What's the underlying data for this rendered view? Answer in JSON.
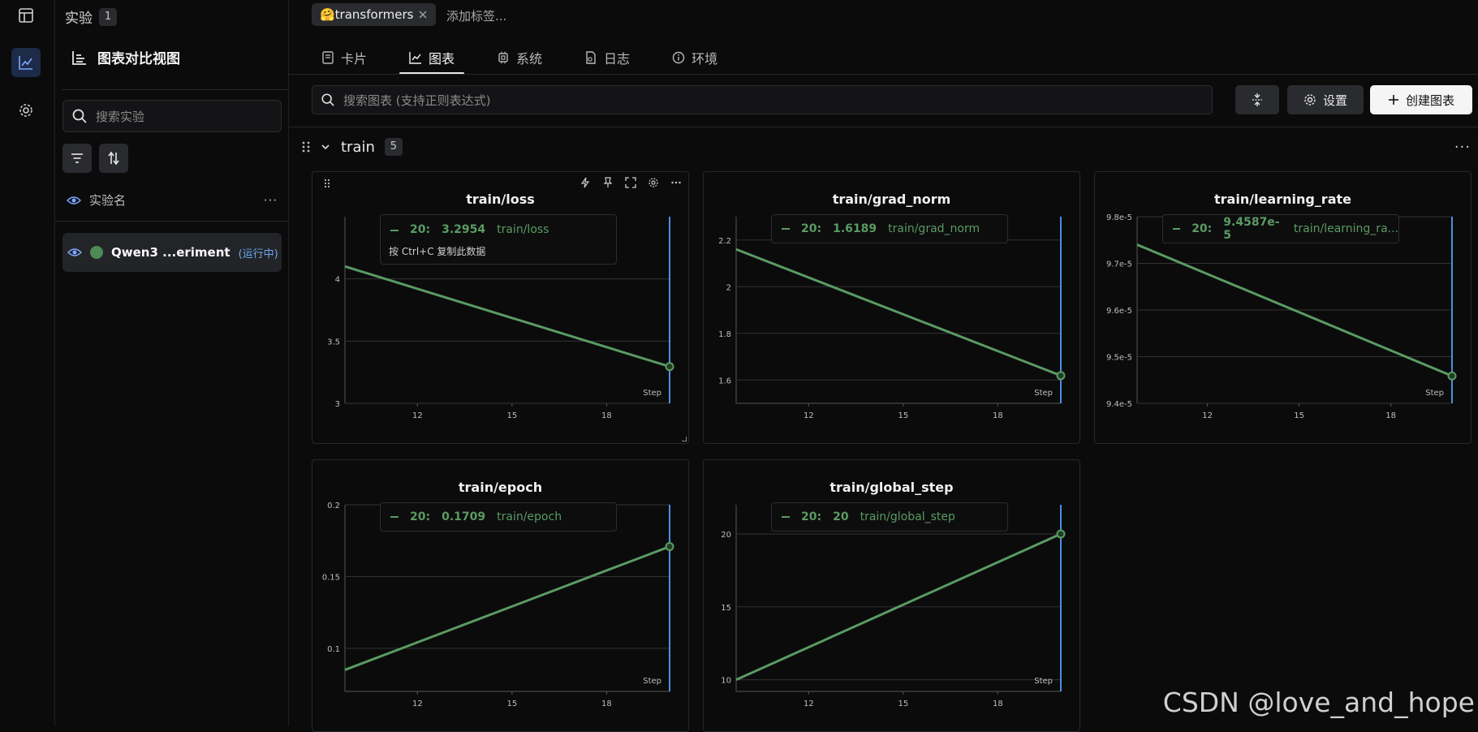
{
  "sidebar": {
    "experiments_label": "实验",
    "experiments_count": "1",
    "view_title": "图表对比视图",
    "search_placeholder": "搜索实验",
    "column_header": "实验名",
    "column_more": "···",
    "experiment": {
      "name": "Qwen3 ...eriment",
      "status": "(运行中)",
      "color": "#4e8a55"
    }
  },
  "header": {
    "tag": "🤗transformers",
    "add_tag": "添加标签...",
    "tabs": [
      {
        "label": "卡片",
        "icon": "card-icon"
      },
      {
        "label": "图表",
        "icon": "chart-icon"
      },
      {
        "label": "系统",
        "icon": "chip-icon"
      },
      {
        "label": "日志",
        "icon": "log-icon"
      },
      {
        "label": "环境",
        "icon": "info-icon"
      }
    ],
    "active_tab": "图表",
    "search_placeholder": "搜索图表 (支持正则表达式)",
    "settings_label": "设置",
    "create_label": "创建图表"
  },
  "group": {
    "name": "train",
    "count": "5",
    "more": "···"
  },
  "colors": {
    "line": "#5a9b62",
    "cursor": "#4a90e2",
    "accent": "#1d2a48"
  },
  "chart_data": [
    {
      "type": "line",
      "title": "train/loss",
      "xlabel": "Step",
      "x": [
        9.7,
        20
      ],
      "y": [
        4.1,
        3.2954
      ],
      "xticks": [
        12,
        15,
        18
      ],
      "yticks": [
        "3",
        "3.5",
        "4"
      ],
      "ytick_vals": [
        3,
        3.5,
        4
      ],
      "ylim": [
        3,
        4.5
      ],
      "xlim": [
        9.7,
        20
      ],
      "tooltip": {
        "step": "20:",
        "value": "3.2954",
        "name": "train/loss",
        "hint": "按 Ctrl+C 复制此数据"
      }
    },
    {
      "type": "line",
      "title": "train/grad_norm",
      "xlabel": "Step",
      "x": [
        9.7,
        20
      ],
      "y": [
        2.16,
        1.6189
      ],
      "xticks": [
        12,
        15,
        18
      ],
      "yticks": [
        "1.6",
        "1.8",
        "2",
        "2.2"
      ],
      "ytick_vals": [
        1.6,
        1.8,
        2.0,
        2.2
      ],
      "ylim": [
        1.5,
        2.3
      ],
      "xlim": [
        9.7,
        20
      ],
      "tooltip": {
        "step": "20:",
        "value": "1.6189",
        "name": "train/grad_norm"
      }
    },
    {
      "type": "line",
      "title": "train/learning_rate",
      "xlabel": "Step",
      "x": [
        9.7,
        20
      ],
      "y": [
        9.74e-05,
        9.4587e-05
      ],
      "xticks": [
        12,
        15,
        18
      ],
      "yticks": [
        "9.4e-5",
        "9.5e-5",
        "9.6e-5",
        "9.7e-5",
        "9.8e-5"
      ],
      "ytick_vals": [
        9.4e-05,
        9.5e-05,
        9.6e-05,
        9.7e-05,
        9.8e-05
      ],
      "ylim": [
        9.4e-05,
        9.8e-05
      ],
      "xlim": [
        9.7,
        20
      ],
      "tooltip": {
        "step": "20:",
        "value": "9.4587e-5",
        "name": "train/learning_ra..."
      }
    },
    {
      "type": "line",
      "title": "train/epoch",
      "xlabel": "Step",
      "x": [
        9.7,
        20
      ],
      "y": [
        0.085,
        0.1709
      ],
      "xticks": [
        12,
        15,
        18
      ],
      "yticks": [
        "0.1",
        "0.15",
        "0.2"
      ],
      "ytick_vals": [
        0.1,
        0.15,
        0.2
      ],
      "ylim": [
        0.07,
        0.2
      ],
      "xlim": [
        9.7,
        20
      ],
      "tooltip": {
        "step": "20:",
        "value": "0.1709",
        "name": "train/epoch"
      }
    },
    {
      "type": "line",
      "title": "train/global_step",
      "xlabel": "Step",
      "x": [
        9.7,
        20
      ],
      "y": [
        10,
        20
      ],
      "xticks": [
        12,
        15,
        18
      ],
      "yticks": [
        "10",
        "15",
        "20"
      ],
      "ytick_vals": [
        10,
        15,
        20
      ],
      "ylim": [
        9.2,
        22
      ],
      "xlim": [
        9.7,
        20
      ],
      "tooltip": {
        "step": "20:",
        "value": "20",
        "name": "train/global_step"
      }
    }
  ],
  "watermark": "CSDN @love_and_hope"
}
